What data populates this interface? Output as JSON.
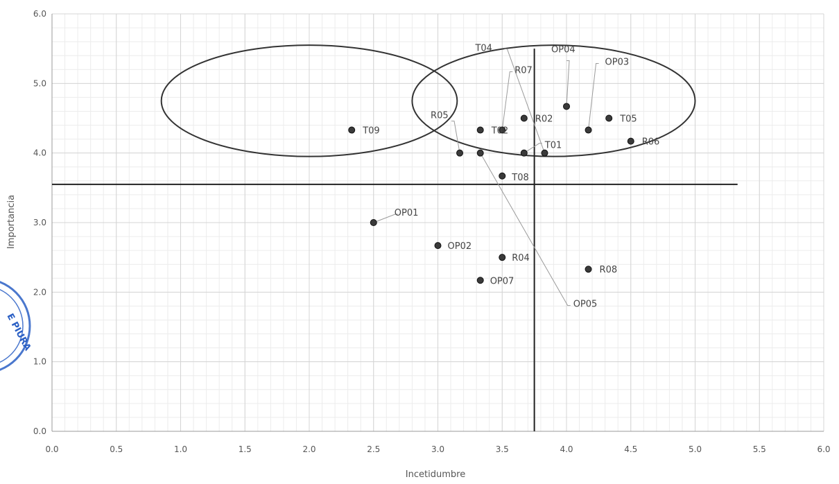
{
  "chart_data": {
    "type": "scatter",
    "title": "",
    "xlabel": "Incetidumbre",
    "ylabel": "Importancia",
    "xlim": [
      0.0,
      6.0
    ],
    "ylim": [
      0.0,
      6.0
    ],
    "x_ticks": [
      "0.0",
      "0.5",
      "1.0",
      "1.5",
      "2.0",
      "2.5",
      "3.0",
      "3.5",
      "4.0",
      "4.5",
      "5.0",
      "5.5",
      "6.0"
    ],
    "y_ticks": [
      "0.0",
      "1.0",
      "2.0",
      "3.0",
      "4.0",
      "5.0",
      "6.0"
    ],
    "grid": true,
    "points": [
      {
        "label": "T09",
        "x": 2.33,
        "y": 4.33
      },
      {
        "label": "OP01",
        "x": 2.5,
        "y": 3.0
      },
      {
        "label": "OP02",
        "x": 3.0,
        "y": 2.67
      },
      {
        "label": "R05",
        "x": 3.17,
        "y": 4.0
      },
      {
        "label": "OP05",
        "x": 3.33,
        "y": 4.0
      },
      {
        "label": "T02",
        "x": 3.33,
        "y": 4.33
      },
      {
        "label": "OP07",
        "x": 3.33,
        "y": 2.17
      },
      {
        "label": "R07",
        "x": 3.5,
        "y": 4.33
      },
      {
        "label": "T08",
        "x": 3.5,
        "y": 3.67
      },
      {
        "label": "R04",
        "x": 3.5,
        "y": 2.5
      },
      {
        "label": "R02",
        "x": 3.67,
        "y": 4.5
      },
      {
        "label": "T01",
        "x": 3.67,
        "y": 4.0
      },
      {
        "label": "T04",
        "x": 3.83,
        "y": 4.0
      },
      {
        "label": "OP04",
        "x": 4.0,
        "y": 4.67
      },
      {
        "label": "OP03",
        "x": 4.17,
        "y": 4.33
      },
      {
        "label": "R08",
        "x": 4.17,
        "y": 2.33
      },
      {
        "label": "T05",
        "x": 4.33,
        "y": 4.5
      },
      {
        "label": "R06",
        "x": 4.5,
        "y": 4.17
      }
    ],
    "reference_lines": {
      "horizontal_y": 3.55,
      "vertical_x": 3.75
    },
    "ellipses": [
      {
        "cx": 2.0,
        "cy": 4.75,
        "rx": 1.15,
        "ry": 0.8
      },
      {
        "cx": 3.9,
        "cy": 4.75,
        "rx": 1.1,
        "ry": 0.8
      }
    ]
  },
  "stamp": {
    "text": "E PIURA",
    "color": "#2a5fc4"
  }
}
